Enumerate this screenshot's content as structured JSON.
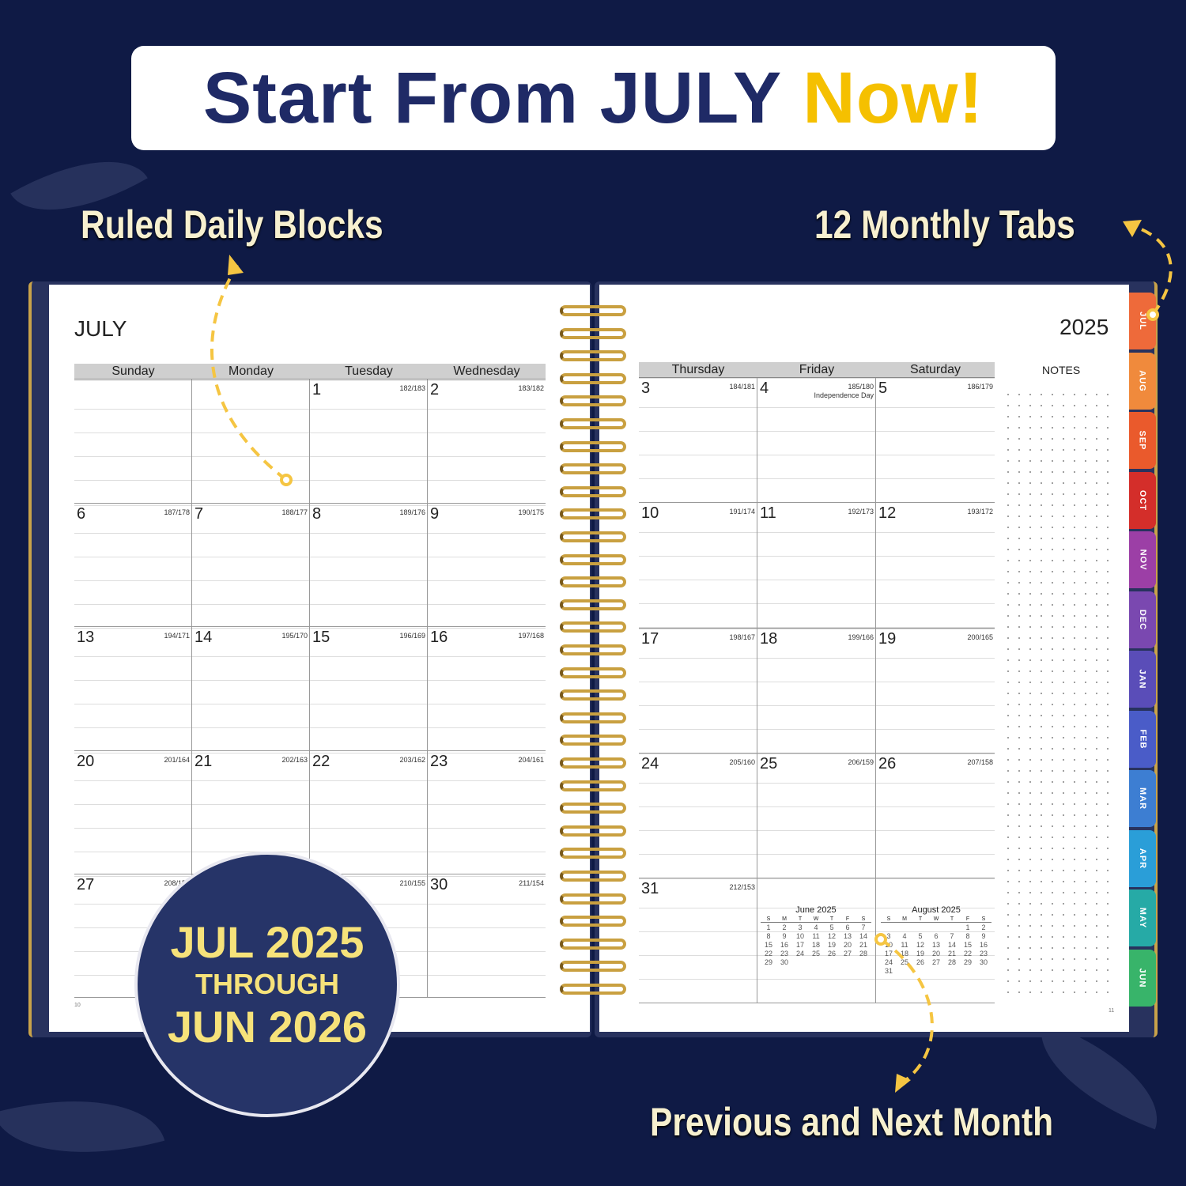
{
  "banner": {
    "text": "Start From JULY",
    "highlight": "Now!"
  },
  "callouts": {
    "ruled": "Ruled Daily Blocks",
    "tabs": "12 Monthly Tabs",
    "prevnext": "Previous and Next Month"
  },
  "badge": {
    "line1": "JUL 2025",
    "line2": "THROUGH",
    "line3": "JUN 2026"
  },
  "left_page": {
    "month": "JULY",
    "page_number": "10",
    "days": [
      "Sunday",
      "Monday",
      "Tuesday",
      "Wednesday"
    ],
    "weeks": [
      [
        null,
        null,
        {
          "d": "1",
          "doy": "182/183"
        },
        {
          "d": "2",
          "doy": "183/182"
        }
      ],
      [
        {
          "d": "6",
          "doy": "187/178"
        },
        {
          "d": "7",
          "doy": "188/177"
        },
        {
          "d": "8",
          "doy": "189/176"
        },
        {
          "d": "9",
          "doy": "190/175"
        }
      ],
      [
        {
          "d": "13",
          "doy": "194/171"
        },
        {
          "d": "14",
          "doy": "195/170"
        },
        {
          "d": "15",
          "doy": "196/169"
        },
        {
          "d": "16",
          "doy": "197/168"
        }
      ],
      [
        {
          "d": "20",
          "doy": "201/164"
        },
        {
          "d": "21",
          "doy": "202/163"
        },
        {
          "d": "22",
          "doy": "203/162"
        },
        {
          "d": "23",
          "doy": "204/161"
        }
      ],
      [
        {
          "d": "27",
          "doy": "208/157"
        },
        null,
        {
          "d": "",
          "doy": "210/155"
        },
        {
          "d": "30",
          "doy": "211/154"
        }
      ]
    ]
  },
  "right_page": {
    "year": "2025",
    "page_number": "11",
    "notes": "NOTES",
    "days": [
      "Thursday",
      "Friday",
      "Saturday"
    ],
    "weeks": [
      [
        {
          "d": "3",
          "doy": "184/181"
        },
        {
          "d": "4",
          "doy": "185/180",
          "holiday": "Independence Day"
        },
        {
          "d": "5",
          "doy": "186/179"
        }
      ],
      [
        {
          "d": "10",
          "doy": "191/174"
        },
        {
          "d": "11",
          "doy": "192/173"
        },
        {
          "d": "12",
          "doy": "193/172"
        }
      ],
      [
        {
          "d": "17",
          "doy": "198/167"
        },
        {
          "d": "18",
          "doy": "199/166"
        },
        {
          "d": "19",
          "doy": "200/165"
        }
      ],
      [
        {
          "d": "24",
          "doy": "205/160"
        },
        {
          "d": "25",
          "doy": "206/159"
        },
        {
          "d": "26",
          "doy": "207/158"
        }
      ],
      [
        {
          "d": "31",
          "doy": "212/153"
        },
        null,
        null
      ]
    ],
    "mini_calendars": [
      {
        "title": "June 2025",
        "days": [
          "S",
          "M",
          "T",
          "W",
          "T",
          "F",
          "S"
        ],
        "lead": 0,
        "count": 30
      },
      {
        "title": "August 2025",
        "days": [
          "S",
          "M",
          "T",
          "W",
          "T",
          "F",
          "S"
        ],
        "lead": 5,
        "count": 31
      }
    ]
  },
  "tabs": [
    {
      "label": "JUL",
      "color": "#ee6a3a"
    },
    {
      "label": "AUG",
      "color": "#f08a3c"
    },
    {
      "label": "SEP",
      "color": "#ea5a2c"
    },
    {
      "label": "OCT",
      "color": "#d42e2a"
    },
    {
      "label": "NOV",
      "color": "#9c3fa6"
    },
    {
      "label": "DEC",
      "color": "#7a48b0"
    },
    {
      "label": "JAN",
      "color": "#5a4db8"
    },
    {
      "label": "FEB",
      "color": "#4a5cc8"
    },
    {
      "label": "MAR",
      "color": "#3d7ed2"
    },
    {
      "label": "APR",
      "color": "#2a9ed8"
    },
    {
      "label": "MAY",
      "color": "#26aaa6"
    },
    {
      "label": "JUN",
      "color": "#38b46a"
    }
  ],
  "colors": {
    "background": "#0f1a45",
    "title": "#1f2a66",
    "accent": "#f5c000",
    "badge": "#263468"
  }
}
